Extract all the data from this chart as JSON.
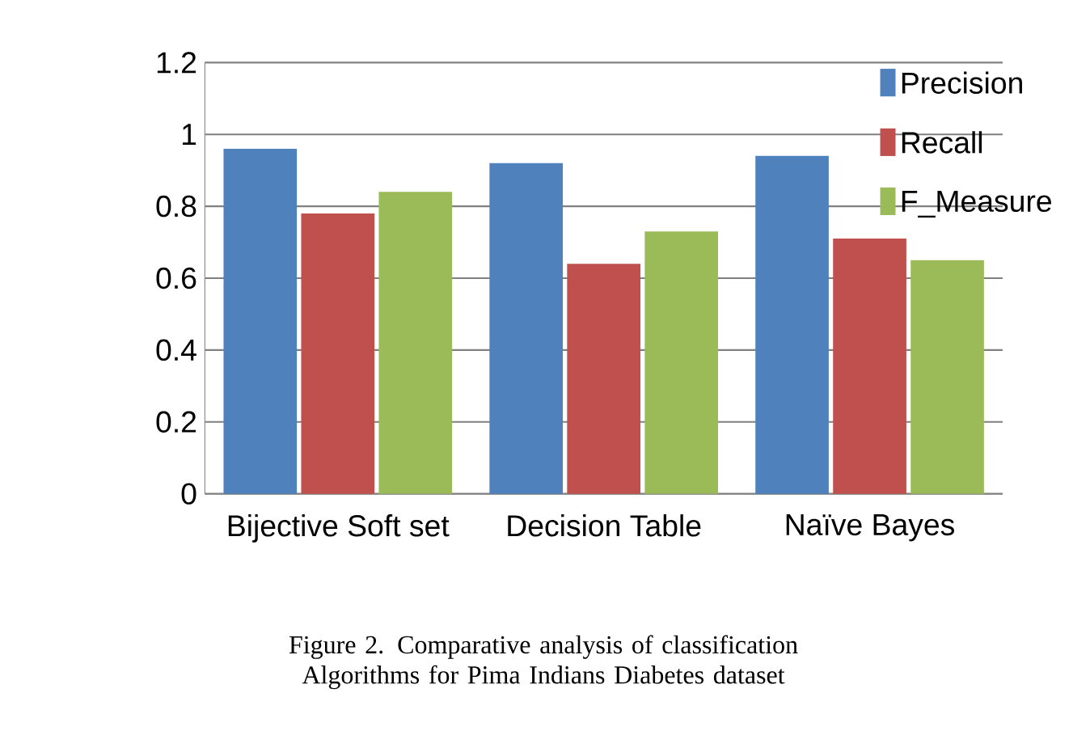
{
  "chart_data": {
    "type": "bar",
    "categories": [
      "Bijective Soft set",
      "Decision Table",
      "Naïve Bayes"
    ],
    "series": [
      {
        "name": "Precision",
        "color": "#4f81bd",
        "values": [
          0.96,
          0.92,
          0.94
        ]
      },
      {
        "name": "Recall",
        "color": "#c0504d",
        "values": [
          0.78,
          0.64,
          0.71
        ]
      },
      {
        "name": "F_Measure",
        "color": "#9bbb59",
        "values": [
          0.84,
          0.73,
          0.65
        ]
      }
    ],
    "ylim": [
      0,
      1.2
    ],
    "yticks": [
      0,
      0.2,
      0.4,
      0.6,
      0.8,
      1,
      1.2
    ],
    "grid": "y",
    "legend": "top right",
    "annotations": [
      "Figure 2. Comparative analysis of classification Algorithms for Pima Indians Diabetes dataset"
    ]
  }
}
